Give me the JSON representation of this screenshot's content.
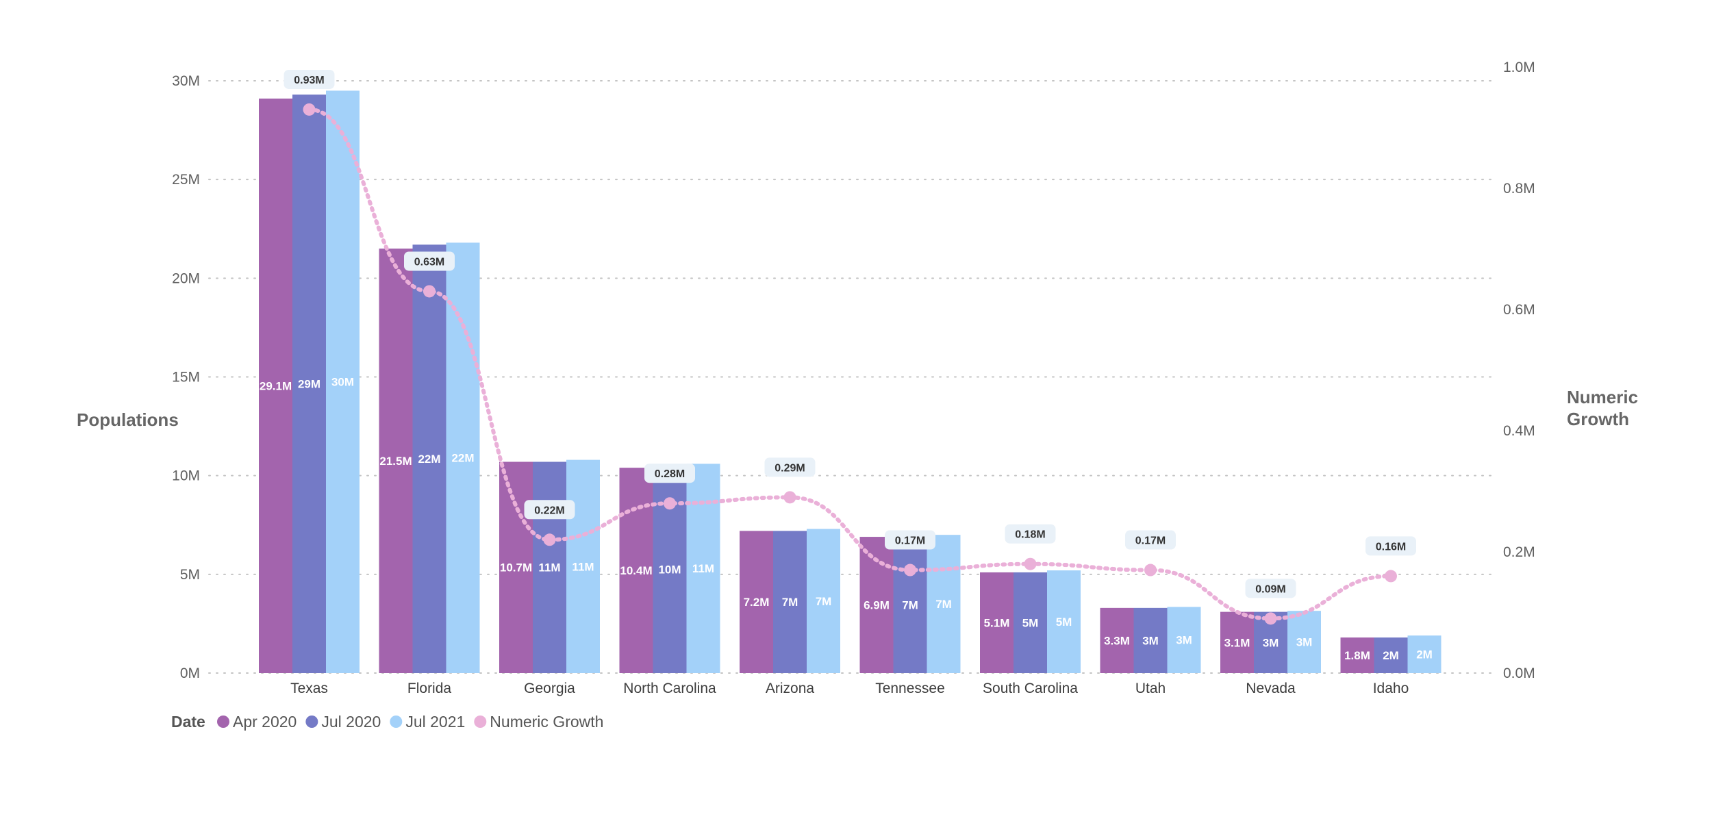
{
  "chart_data": {
    "type": "bar",
    "categories": [
      "Texas",
      "Florida",
      "Georgia",
      "North Carolina",
      "Arizona",
      "Tennessee",
      "South Carolina",
      "Utah",
      "Nevada",
      "Idaho"
    ],
    "series": [
      {
        "name": "Apr 2020",
        "color": "#a364ad",
        "values": [
          29.1,
          21.5,
          10.7,
          10.4,
          7.2,
          6.9,
          5.1,
          3.3,
          3.1,
          1.8
        ],
        "labels": [
          "29.1M",
          "21.5M",
          "10.7M",
          "10.4M",
          "7.2M",
          "6.9M",
          "5.1M",
          "3.3M",
          "3.1M",
          "1.8M"
        ]
      },
      {
        "name": "Jul 2020",
        "color": "#747ac6",
        "values": [
          29.3,
          21.7,
          10.7,
          10.5,
          7.2,
          6.9,
          5.1,
          3.3,
          3.1,
          1.8
        ],
        "labels": [
          "29M",
          "22M",
          "11M",
          "10M",
          "7M",
          "7M",
          "5M",
          "3M",
          "3M",
          "2M"
        ]
      },
      {
        "name": "Jul 2021",
        "color": "#a3d1f9",
        "values": [
          29.5,
          21.8,
          10.8,
          10.6,
          7.3,
          7.0,
          5.2,
          3.35,
          3.15,
          1.9
        ],
        "labels": [
          "30M",
          "22M",
          "11M",
          "11M",
          "7M",
          "7M",
          "5M",
          "3M",
          "3M",
          "2M"
        ]
      },
      {
        "name": "Numeric Growth",
        "color": "#eab0d8",
        "axis": "right",
        "values": [
          0.93,
          0.63,
          0.22,
          0.28,
          0.29,
          0.17,
          0.18,
          0.17,
          0.09,
          0.16
        ],
        "labels": [
          "0.93M",
          "0.63M",
          "0.22M",
          "0.28M",
          "0.29M",
          "0.17M",
          "0.18M",
          "0.17M",
          "0.09M",
          "0.16M"
        ]
      }
    ],
    "ylabel": "Populations",
    "y2label": [
      "Numeric",
      "Growth"
    ],
    "ylim": [
      0,
      30
    ],
    "y_ticks": [
      0,
      5,
      10,
      15,
      20,
      25,
      30
    ],
    "y_tick_labels": [
      "0M",
      "5M",
      "10M",
      "15M",
      "20M",
      "25M",
      "30M"
    ],
    "y2lim": [
      0,
      1.0
    ],
    "y2_ticks": [
      0,
      0.2,
      0.4,
      0.6,
      0.8,
      1.0
    ],
    "y2_tick_labels": [
      "0.0M",
      "0.2M",
      "0.4M",
      "0.6M",
      "0.8M",
      "1.0M"
    ],
    "grid": true,
    "legend": {
      "title": "Date",
      "placement": "bottom-left",
      "items": [
        "Apr 2020",
        "Jul 2020",
        "Jul 2021",
        "Numeric Growth"
      ]
    }
  }
}
